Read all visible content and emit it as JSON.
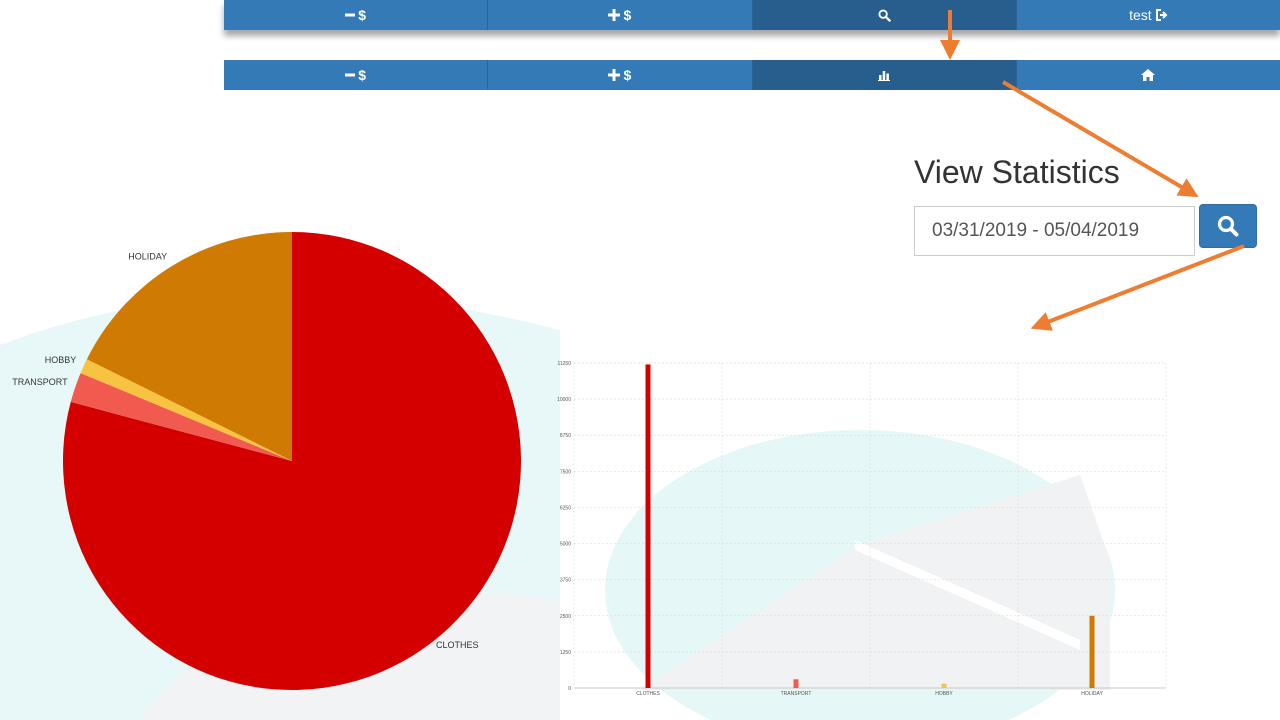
{
  "nav_top": {
    "items": [
      {
        "label": "$",
        "icon": "minus-icon",
        "active": false
      },
      {
        "label": "$",
        "icon": "plus-icon",
        "active": false
      },
      {
        "label": "",
        "icon": "search-icon",
        "active": true
      },
      {
        "label": "test",
        "icon": "sign-out-icon",
        "active": false
      }
    ]
  },
  "nav_second": {
    "items": [
      {
        "label": "$",
        "icon": "minus-icon",
        "active": false
      },
      {
        "label": "$",
        "icon": "plus-icon",
        "active": false
      },
      {
        "label": "",
        "icon": "bar-chart-icon",
        "active": true
      },
      {
        "label": "",
        "icon": "home-icon",
        "active": false
      }
    ]
  },
  "stats": {
    "title": "View Statistics",
    "date_range": "03/31/2019 - 05/04/2019",
    "search_icon": "search-icon"
  },
  "colors": {
    "nav": "#337ab7",
    "nav_active": "#285e8e",
    "arrow": "#ed7d31",
    "clothes": "#d40000",
    "transport": "#f05a4f",
    "hobby": "#f7c340",
    "holiday": "#cf7a03"
  },
  "chart_data": [
    {
      "type": "pie",
      "slices": [
        {
          "label": "CLOTHES",
          "value": 11200,
          "color": "#d40000"
        },
        {
          "label": "TRANSPORT",
          "value": 300,
          "color": "#f05a4f"
        },
        {
          "label": "HOBBY",
          "value": 150,
          "color": "#f7c340"
        },
        {
          "label": "HOLIDAY",
          "value": 2500,
          "color": "#cf7a03"
        }
      ]
    },
    {
      "type": "bar",
      "categories": [
        "CLOTHES",
        "TRANSPORT",
        "HOBBY",
        "HOLIDAY"
      ],
      "values": [
        11200,
        300,
        150,
        2500
      ],
      "colors": [
        "#d40000",
        "#f05a4f",
        "#f7c340",
        "#cf7a03"
      ],
      "yticks": [
        0,
        1250,
        2500,
        3750,
        5000,
        6250,
        7500,
        8750,
        10000,
        11250
      ],
      "ylim": [
        0,
        11250
      ],
      "grid": true
    }
  ]
}
